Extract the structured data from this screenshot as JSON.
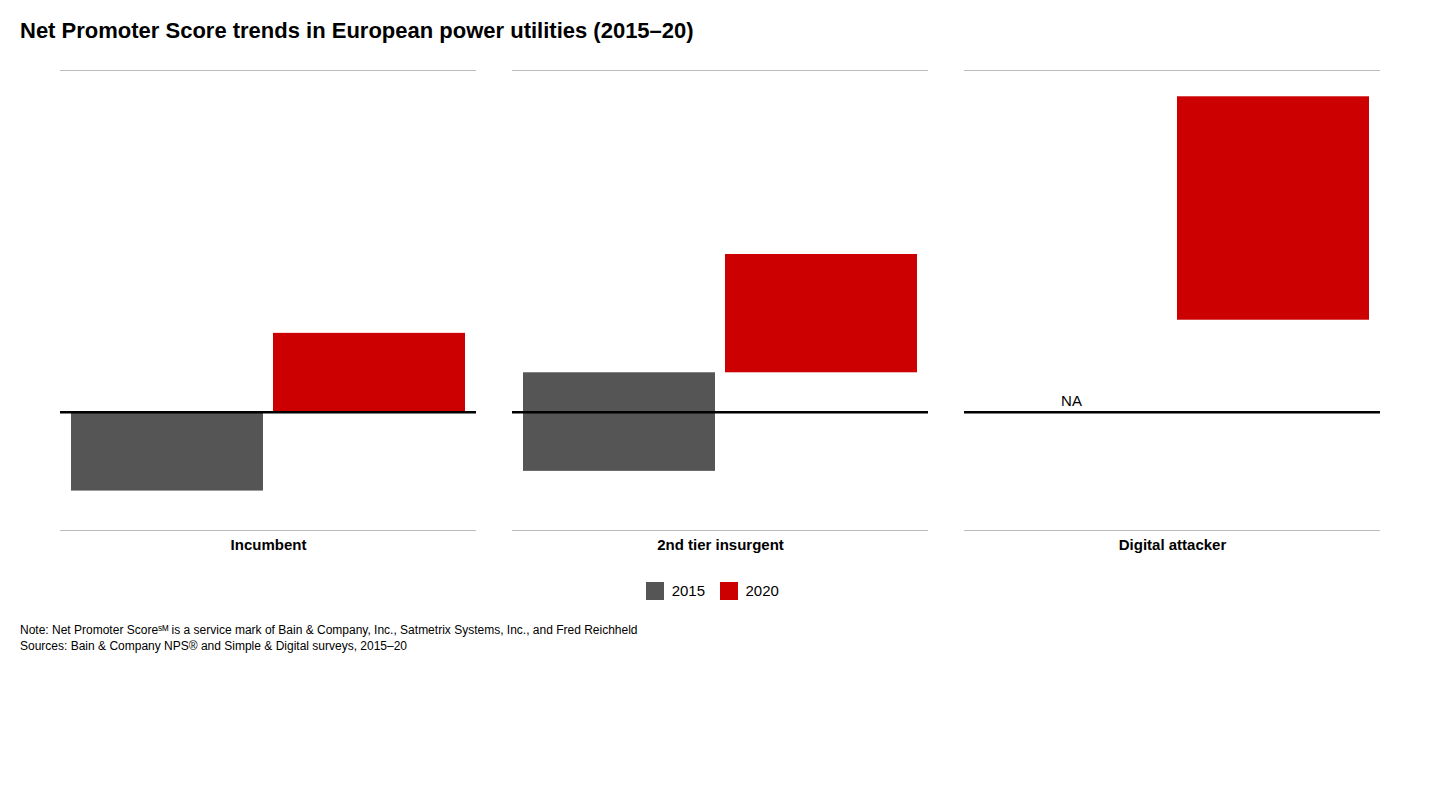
{
  "chart_data": {
    "type": "bar",
    "title": "Net Promoter Score trends in European power utilities (2015–20)",
    "categories": [
      "Incumbent",
      "2nd tier insurgent",
      "Digital attacker"
    ],
    "series": [
      {
        "name": "2015",
        "color": "#555555",
        "values": [
          [
            -12,
            0
          ],
          [
            -9,
            6
          ],
          null
        ]
      },
      {
        "name": "2020",
        "color": "#cc0000",
        "values": [
          [
            0,
            12
          ],
          [
            6,
            24
          ],
          [
            14,
            48
          ]
        ]
      }
    ],
    "annotations": [
      {
        "text": "NA",
        "category": "Digital attacker",
        "series": "2015"
      }
    ],
    "notes": [
      "Note: Net Promoter Scoreˢᴹ is a service mark of Bain & Company, Inc., Satmetrix Systems, Inc., and Fred Reichheld",
      "Sources: Bain & Company NPS® and Simple & Digital surveys, 2015–20"
    ],
    "ylim": [
      -18,
      52
    ],
    "tick_labels": "x",
    "grid": false,
    "legend": "bottom"
  }
}
